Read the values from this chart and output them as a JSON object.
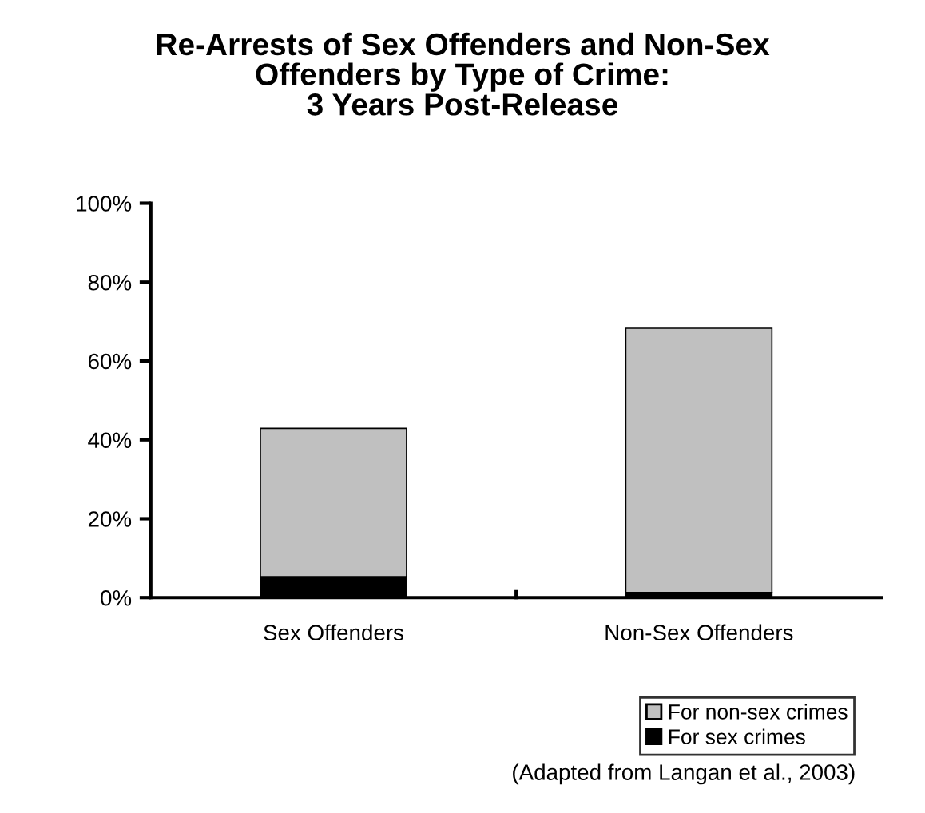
{
  "chart_data": {
    "type": "bar",
    "title": "Re-Arrests of Sex Offenders and Non-Sex\nOffenders by Type of Crime:\n3 Years Post-Release",
    "categories": [
      "Sex Offenders",
      "Non-Sex Offenders"
    ],
    "stacked": true,
    "series": [
      {
        "name": "For sex crimes",
        "color": "#000000",
        "values": [
          5.3,
          1.3
        ]
      },
      {
        "name": "For non-sex crimes",
        "color": "#c0c0c0",
        "values": [
          37.6,
          67.0
        ]
      }
    ],
    "ylim": [
      0,
      100
    ],
    "yticks": [
      {
        "value": 0,
        "label": "0%"
      },
      {
        "value": 20,
        "label": "20%"
      },
      {
        "value": 40,
        "label": "40%"
      },
      {
        "value": 60,
        "label": "60%"
      },
      {
        "value": 80,
        "label": "80%"
      },
      {
        "value": 100,
        "label": "100%"
      }
    ],
    "grid": false,
    "legend": "bottom right",
    "annotations": [
      "(Adapted from Langan et al., 2003)"
    ]
  }
}
